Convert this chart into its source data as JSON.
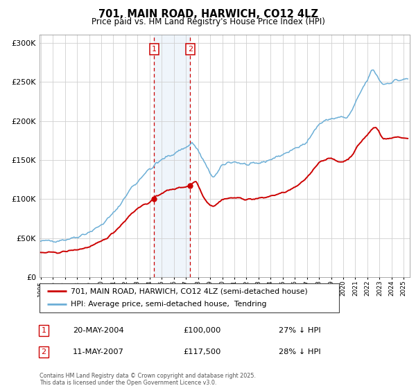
{
  "title": "701, MAIN ROAD, HARWICH, CO12 4LZ",
  "subtitle": "Price paid vs. HM Land Registry's House Price Index (HPI)",
  "legend_line1": "701, MAIN ROAD, HARWICH, CO12 4LZ (semi-detached house)",
  "legend_line2": "HPI: Average price, semi-detached house,  Tendring",
  "annotation1_date": "20-MAY-2004",
  "annotation1_price": "£100,000",
  "annotation1_hpi": "27% ↓ HPI",
  "annotation1_year": 2004.37,
  "annotation1_value": 100000,
  "annotation2_date": "11-MAY-2007",
  "annotation2_price": "£117,500",
  "annotation2_hpi": "28% ↓ HPI",
  "annotation2_year": 2007.36,
  "annotation2_value": 117500,
  "footer": "Contains HM Land Registry data © Crown copyright and database right 2025.\nThis data is licensed under the Open Government Licence v3.0.",
  "hpi_color": "#6baed6",
  "property_color": "#cc0000",
  "background_color": "#ffffff",
  "grid_color": "#d0d0d0",
  "shade_color": "#ddeeff",
  "dashed_line_color": "#cc0000",
  "ylim": [
    0,
    310000
  ],
  "xlim_start": 1994.9,
  "xlim_end": 2025.5
}
